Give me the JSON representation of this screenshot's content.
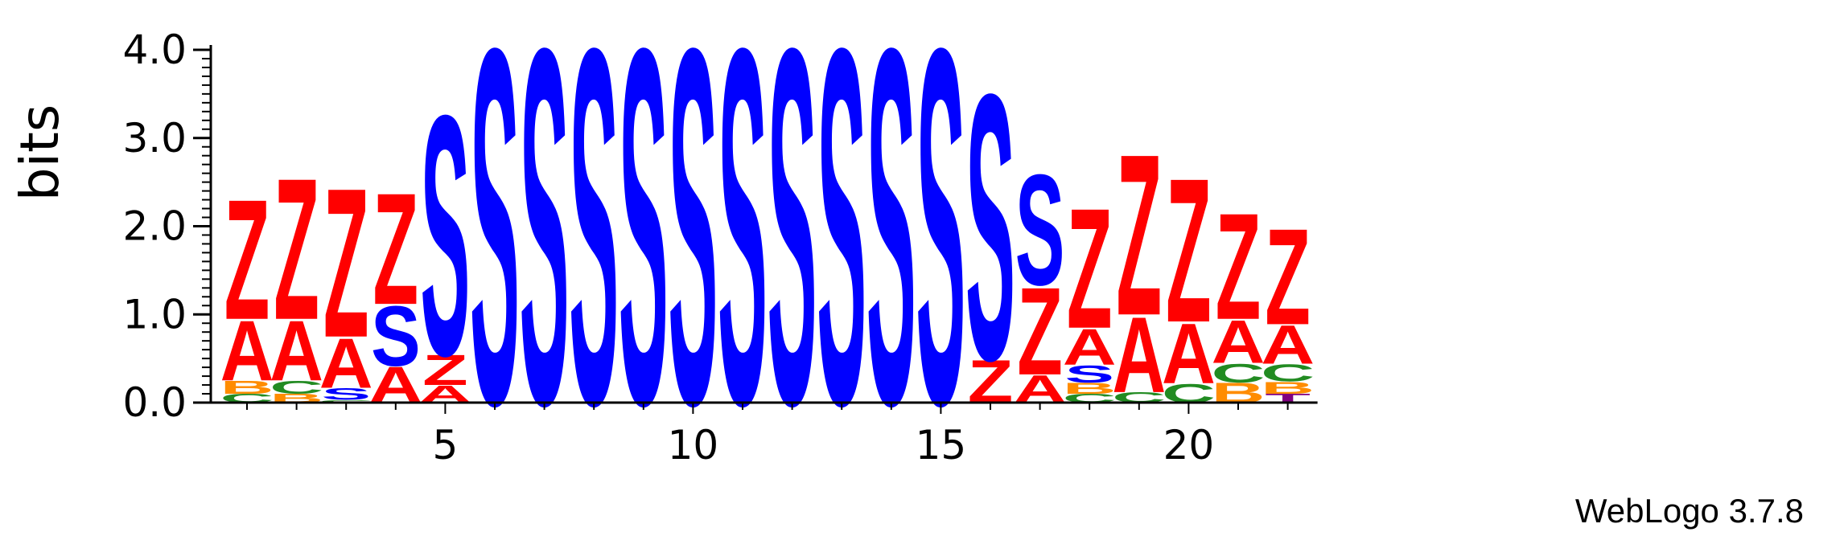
{
  "chart_data": {
    "type": "sequence-logo",
    "ylabel": "bits",
    "ylim": [
      0,
      4
    ],
    "yticks": [
      "0.0",
      "1.0",
      "2.0",
      "3.0",
      "4.0"
    ],
    "xticks": [
      5,
      10,
      15,
      20
    ],
    "credit": "WebLogo 3.7.8",
    "colors": {
      "S": "#0000ff",
      "Z": "#ff0000",
      "A": "#ff0000",
      "B": "#ff8c00",
      "C": "#228b22",
      "T": "#800080"
    },
    "positions": [
      {
        "pos": 1,
        "stack": [
          [
            "C",
            0.1
          ],
          [
            "B",
            0.15
          ],
          [
            "A",
            0.7
          ],
          [
            "Z",
            1.4
          ]
        ]
      },
      {
        "pos": 2,
        "stack": [
          [
            "B",
            0.1
          ],
          [
            "C",
            0.15
          ],
          [
            "A",
            0.7
          ],
          [
            "Z",
            1.65
          ]
        ]
      },
      {
        "pos": 3,
        "stack": [
          [
            "C",
            0.03
          ],
          [
            "S",
            0.14
          ],
          [
            "A",
            0.58
          ],
          [
            "Z",
            1.74
          ]
        ]
      },
      {
        "pos": 4,
        "stack": [
          [
            "A",
            0.42
          ],
          [
            "S",
            0.7
          ],
          [
            "Z",
            1.3
          ]
        ]
      },
      {
        "pos": 5,
        "stack": [
          [
            "A",
            0.2
          ],
          [
            "Z",
            0.35
          ],
          [
            "S",
            2.8
          ]
        ]
      },
      {
        "pos": 6,
        "stack": [
          [
            "S",
            4.15
          ]
        ]
      },
      {
        "pos": 7,
        "stack": [
          [
            "S",
            4.15
          ]
        ]
      },
      {
        "pos": 8,
        "stack": [
          [
            "S",
            4.15
          ]
        ]
      },
      {
        "pos": 9,
        "stack": [
          [
            "S",
            4.15
          ]
        ]
      },
      {
        "pos": 10,
        "stack": [
          [
            "S",
            4.15
          ]
        ]
      },
      {
        "pos": 11,
        "stack": [
          [
            "S",
            4.15
          ]
        ]
      },
      {
        "pos": 12,
        "stack": [
          [
            "S",
            4.15
          ]
        ]
      },
      {
        "pos": 13,
        "stack": [
          [
            "S",
            4.15
          ]
        ]
      },
      {
        "pos": 14,
        "stack": [
          [
            "S",
            4.15
          ]
        ]
      },
      {
        "pos": 15,
        "stack": [
          [
            "S",
            4.15
          ]
        ]
      },
      {
        "pos": 16,
        "stack": [
          [
            "Z",
            0.5
          ],
          [
            "S",
            3.1
          ]
        ]
      },
      {
        "pos": 17,
        "stack": [
          [
            "A",
            0.32
          ],
          [
            "Z",
            1.02
          ],
          [
            "S",
            1.29
          ]
        ]
      },
      {
        "pos": 18,
        "stack": [
          [
            "C",
            0.1
          ],
          [
            "B",
            0.13
          ],
          [
            "S",
            0.2
          ],
          [
            "A",
            0.42
          ],
          [
            "Z",
            1.4
          ]
        ]
      },
      {
        "pos": 19,
        "stack": [
          [
            "C",
            0.12
          ],
          [
            "A",
            0.88
          ],
          [
            "Z",
            1.88
          ]
        ]
      },
      {
        "pos": 20,
        "stack": [
          [
            "C",
            0.22
          ],
          [
            "A",
            0.7
          ],
          [
            "Z",
            1.68
          ]
        ]
      },
      {
        "pos": 21,
        "stack": [
          [
            "B",
            0.23
          ],
          [
            "C",
            0.22
          ],
          [
            "A",
            0.5
          ],
          [
            "Z",
            1.24
          ]
        ]
      },
      {
        "pos": 22,
        "stack": [
          [
            "T",
            0.1
          ],
          [
            "B",
            0.14
          ],
          [
            "C",
            0.2
          ],
          [
            "A",
            0.45
          ],
          [
            "Z",
            1.12
          ]
        ]
      }
    ]
  }
}
